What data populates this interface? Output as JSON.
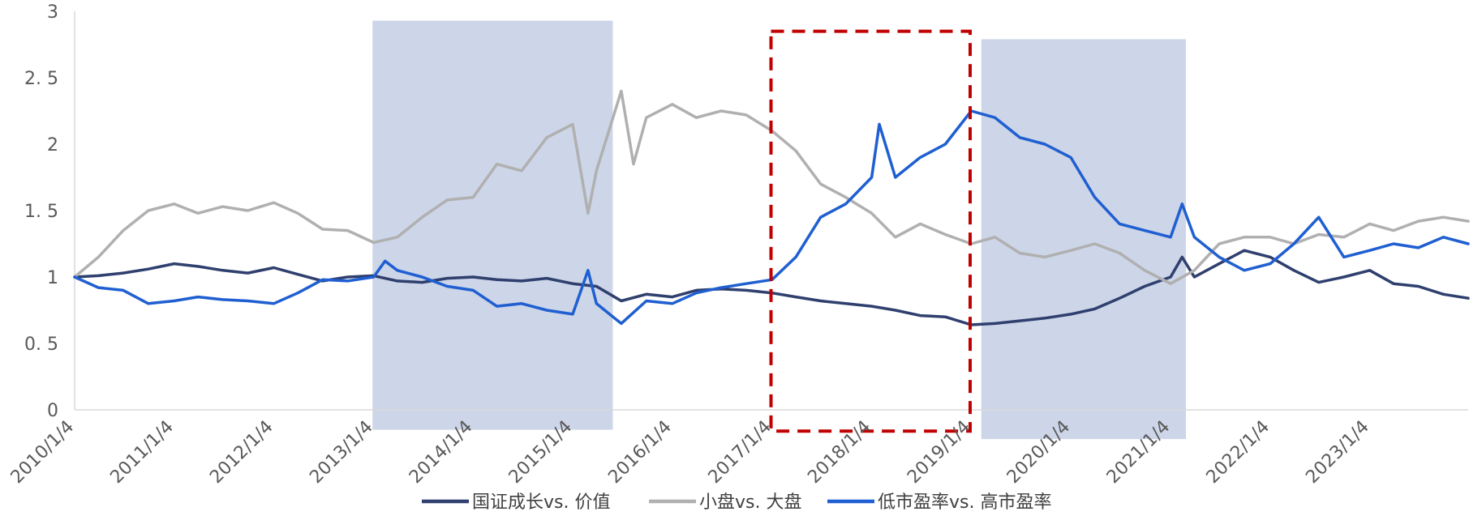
{
  "chart_data": {
    "type": "line",
    "title": "",
    "xlabel": "",
    "ylabel": "",
    "ylim": [
      0,
      3
    ],
    "xlim": [
      "2010-01-04",
      "2023-12-31"
    ],
    "y_ticks": [
      "0",
      "0. 5",
      "1",
      "1. 5",
      "2",
      "2. 5",
      "3"
    ],
    "y_tick_values": [
      0,
      0.5,
      1,
      1.5,
      2,
      2.5,
      3
    ],
    "x_ticks": [
      "2010/1/4",
      "2011/1/4",
      "2012/1/4",
      "2013/1/4",
      "2014/1/4",
      "2015/1/4",
      "2016/1/4",
      "2017/1/4",
      "2018/1/4",
      "2019/1/4",
      "2020/1/4",
      "2021/1/4",
      "2022/1/4",
      "2023/1/4"
    ],
    "grid": false,
    "legend_position": "bottom",
    "shaded_periods": [
      {
        "start": "2012-12-31",
        "end": "2015-05-31",
        "ymin": -0.15,
        "ymax": 2.93,
        "color": "#cdd5e8"
      },
      {
        "start": "2019-02-10",
        "end": "2021-03-01",
        "ymin": -0.22,
        "ymax": 2.79,
        "color": "#cdd5e8"
      }
    ],
    "highlight_box": {
      "start": "2016-12-31",
      "end": "2018-12-31",
      "ymin": -0.16,
      "ymax": 2.85,
      "color": "#c00000",
      "style": "dashed"
    },
    "series": [
      {
        "name": "国证成长vs. 价值",
        "color": "#2f3f6e",
        "points": [
          [
            "2010-01-04",
            1.0
          ],
          [
            "2010-04-01",
            1.01
          ],
          [
            "2010-07-01",
            1.03
          ],
          [
            "2010-10-01",
            1.06
          ],
          [
            "2011-01-04",
            1.1
          ],
          [
            "2011-04-01",
            1.08
          ],
          [
            "2011-07-01",
            1.05
          ],
          [
            "2011-10-01",
            1.03
          ],
          [
            "2012-01-04",
            1.07
          ],
          [
            "2012-04-01",
            1.02
          ],
          [
            "2012-07-01",
            0.97
          ],
          [
            "2012-10-01",
            1.0
          ],
          [
            "2013-01-04",
            1.01
          ],
          [
            "2013-04-01",
            0.97
          ],
          [
            "2013-07-01",
            0.96
          ],
          [
            "2013-10-01",
            0.99
          ],
          [
            "2014-01-04",
            1.0
          ],
          [
            "2014-04-01",
            0.98
          ],
          [
            "2014-07-01",
            0.97
          ],
          [
            "2014-10-01",
            0.99
          ],
          [
            "2015-01-04",
            0.95
          ],
          [
            "2015-04-01",
            0.93
          ],
          [
            "2015-07-01",
            0.82
          ],
          [
            "2015-10-01",
            0.87
          ],
          [
            "2016-01-04",
            0.85
          ],
          [
            "2016-04-01",
            0.9
          ],
          [
            "2016-07-01",
            0.91
          ],
          [
            "2016-10-01",
            0.9
          ],
          [
            "2017-01-04",
            0.88
          ],
          [
            "2017-04-01",
            0.85
          ],
          [
            "2017-07-01",
            0.82
          ],
          [
            "2017-10-01",
            0.8
          ],
          [
            "2018-01-04",
            0.78
          ],
          [
            "2018-04-01",
            0.75
          ],
          [
            "2018-07-01",
            0.71
          ],
          [
            "2018-10-01",
            0.7
          ],
          [
            "2019-01-04",
            0.64
          ],
          [
            "2019-04-01",
            0.65
          ],
          [
            "2019-07-01",
            0.67
          ],
          [
            "2019-10-01",
            0.69
          ],
          [
            "2020-01-04",
            0.72
          ],
          [
            "2020-04-01",
            0.76
          ],
          [
            "2020-07-01",
            0.84
          ],
          [
            "2020-10-01",
            0.93
          ],
          [
            "2021-01-04",
            1.0
          ],
          [
            "2021-02-15",
            1.15
          ],
          [
            "2021-04-01",
            1.0
          ],
          [
            "2021-07-01",
            1.1
          ],
          [
            "2021-10-01",
            1.2
          ],
          [
            "2022-01-04",
            1.15
          ],
          [
            "2022-04-01",
            1.05
          ],
          [
            "2022-07-01",
            0.96
          ],
          [
            "2022-10-01",
            1.0
          ],
          [
            "2023-01-04",
            1.05
          ],
          [
            "2023-04-01",
            0.95
          ],
          [
            "2023-07-01",
            0.93
          ],
          [
            "2023-10-01",
            0.87
          ],
          [
            "2023-12-31",
            0.84
          ]
        ]
      },
      {
        "name": "小盘vs. 大盘",
        "color": "#b0b0b0",
        "points": [
          [
            "2010-01-04",
            1.0
          ],
          [
            "2010-04-01",
            1.15
          ],
          [
            "2010-07-01",
            1.35
          ],
          [
            "2010-10-01",
            1.5
          ],
          [
            "2011-01-04",
            1.55
          ],
          [
            "2011-04-01",
            1.48
          ],
          [
            "2011-07-01",
            1.53
          ],
          [
            "2011-10-01",
            1.5
          ],
          [
            "2012-01-04",
            1.56
          ],
          [
            "2012-04-01",
            1.48
          ],
          [
            "2012-07-01",
            1.36
          ],
          [
            "2012-10-01",
            1.35
          ],
          [
            "2013-01-04",
            1.26
          ],
          [
            "2013-04-01",
            1.3
          ],
          [
            "2013-07-01",
            1.45
          ],
          [
            "2013-10-01",
            1.58
          ],
          [
            "2014-01-04",
            1.6
          ],
          [
            "2014-04-01",
            1.85
          ],
          [
            "2014-07-01",
            1.8
          ],
          [
            "2014-10-01",
            2.05
          ],
          [
            "2015-01-04",
            2.15
          ],
          [
            "2015-03-01",
            1.48
          ],
          [
            "2015-04-01",
            1.8
          ],
          [
            "2015-07-01",
            2.4
          ],
          [
            "2015-08-15",
            1.85
          ],
          [
            "2015-10-01",
            2.2
          ],
          [
            "2016-01-04",
            2.3
          ],
          [
            "2016-04-01",
            2.2
          ],
          [
            "2016-07-01",
            2.25
          ],
          [
            "2016-10-01",
            2.22
          ],
          [
            "2017-01-04",
            2.1
          ],
          [
            "2017-04-01",
            1.95
          ],
          [
            "2017-07-01",
            1.7
          ],
          [
            "2017-10-01",
            1.6
          ],
          [
            "2018-01-04",
            1.48
          ],
          [
            "2018-04-01",
            1.3
          ],
          [
            "2018-07-01",
            1.4
          ],
          [
            "2018-10-01",
            1.32
          ],
          [
            "2019-01-04",
            1.25
          ],
          [
            "2019-04-01",
            1.3
          ],
          [
            "2019-07-01",
            1.18
          ],
          [
            "2019-10-01",
            1.15
          ],
          [
            "2020-01-04",
            1.2
          ],
          [
            "2020-04-01",
            1.25
          ],
          [
            "2020-07-01",
            1.18
          ],
          [
            "2020-10-01",
            1.05
          ],
          [
            "2021-01-04",
            0.95
          ],
          [
            "2021-04-01",
            1.05
          ],
          [
            "2021-07-01",
            1.25
          ],
          [
            "2021-10-01",
            1.3
          ],
          [
            "2022-01-04",
            1.3
          ],
          [
            "2022-04-01",
            1.25
          ],
          [
            "2022-07-01",
            1.32
          ],
          [
            "2022-10-01",
            1.3
          ],
          [
            "2023-01-04",
            1.4
          ],
          [
            "2023-04-01",
            1.35
          ],
          [
            "2023-07-01",
            1.42
          ],
          [
            "2023-10-01",
            1.45
          ],
          [
            "2023-12-31",
            1.42
          ]
        ]
      },
      {
        "name": "低市盈率vs. 高市盈率",
        "color": "#1f5fd1",
        "points": [
          [
            "2010-01-04",
            1.0
          ],
          [
            "2010-04-01",
            0.92
          ],
          [
            "2010-07-01",
            0.9
          ],
          [
            "2010-10-01",
            0.8
          ],
          [
            "2011-01-04",
            0.82
          ],
          [
            "2011-04-01",
            0.85
          ],
          [
            "2011-07-01",
            0.83
          ],
          [
            "2011-10-01",
            0.82
          ],
          [
            "2012-01-04",
            0.8
          ],
          [
            "2012-04-01",
            0.88
          ],
          [
            "2012-07-01",
            0.98
          ],
          [
            "2012-10-01",
            0.97
          ],
          [
            "2013-01-04",
            1.0
          ],
          [
            "2013-02-15",
            1.12
          ],
          [
            "2013-04-01",
            1.05
          ],
          [
            "2013-07-01",
            1.0
          ],
          [
            "2013-10-01",
            0.93
          ],
          [
            "2014-01-04",
            0.9
          ],
          [
            "2014-04-01",
            0.78
          ],
          [
            "2014-07-01",
            0.8
          ],
          [
            "2014-10-01",
            0.75
          ],
          [
            "2015-01-04",
            0.72
          ],
          [
            "2015-03-01",
            1.05
          ],
          [
            "2015-04-01",
            0.8
          ],
          [
            "2015-07-01",
            0.65
          ],
          [
            "2015-10-01",
            0.82
          ],
          [
            "2016-01-04",
            0.8
          ],
          [
            "2016-04-01",
            0.88
          ],
          [
            "2016-07-01",
            0.92
          ],
          [
            "2016-10-01",
            0.95
          ],
          [
            "2017-01-04",
            0.98
          ],
          [
            "2017-04-01",
            1.15
          ],
          [
            "2017-07-01",
            1.45
          ],
          [
            "2017-10-01",
            1.55
          ],
          [
            "2018-01-04",
            1.75
          ],
          [
            "2018-02-01",
            2.15
          ],
          [
            "2018-04-01",
            1.75
          ],
          [
            "2018-07-01",
            1.9
          ],
          [
            "2018-10-01",
            2.0
          ],
          [
            "2019-01-04",
            2.25
          ],
          [
            "2019-04-01",
            2.2
          ],
          [
            "2019-07-01",
            2.05
          ],
          [
            "2019-10-01",
            2.0
          ],
          [
            "2020-01-04",
            1.9
          ],
          [
            "2020-04-01",
            1.6
          ],
          [
            "2020-07-01",
            1.4
          ],
          [
            "2020-10-01",
            1.35
          ],
          [
            "2021-01-04",
            1.3
          ],
          [
            "2021-02-15",
            1.55
          ],
          [
            "2021-04-01",
            1.3
          ],
          [
            "2021-07-01",
            1.15
          ],
          [
            "2021-10-01",
            1.05
          ],
          [
            "2022-01-04",
            1.1
          ],
          [
            "2022-04-01",
            1.25
          ],
          [
            "2022-07-01",
            1.45
          ],
          [
            "2022-10-01",
            1.15
          ],
          [
            "2023-01-04",
            1.2
          ],
          [
            "2023-04-01",
            1.25
          ],
          [
            "2023-07-01",
            1.22
          ],
          [
            "2023-10-01",
            1.3
          ],
          [
            "2023-12-31",
            1.25
          ]
        ]
      }
    ]
  }
}
